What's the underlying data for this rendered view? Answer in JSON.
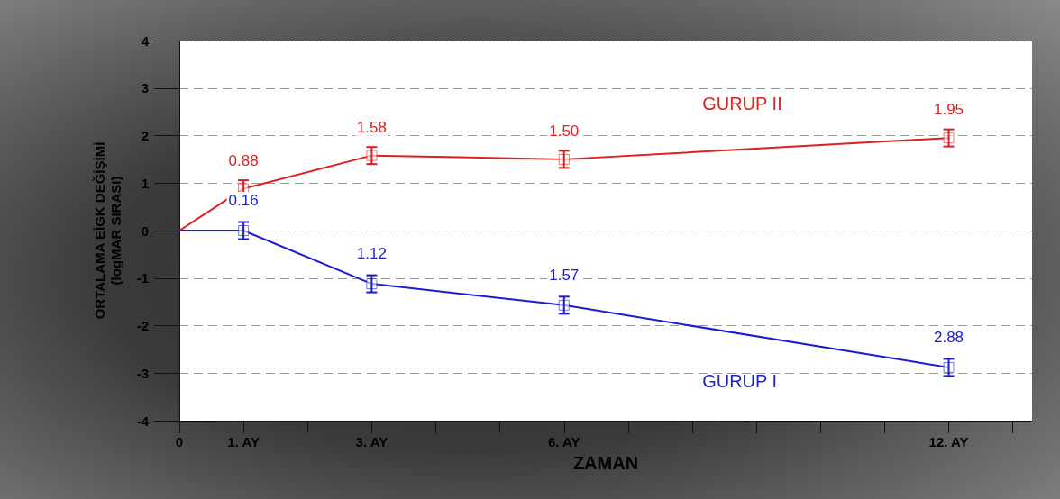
{
  "chart_data": {
    "type": "line",
    "xlabel": "ZAMAN",
    "ylabel": "ORTALAMA EİGK DEĞİŞİMİ\n(logMAR SIRASI)",
    "x": [
      0,
      1,
      3,
      6,
      12
    ],
    "xlim": [
      0,
      13.3
    ],
    "xticks": [
      0,
      {
        "value": 1,
        "label": "1. AY"
      },
      {
        "value": 2,
        "label": null
      },
      {
        "value": 3,
        "label": "3. AY"
      },
      {
        "value": 4,
        "label": null
      },
      {
        "value": 5,
        "label": null
      },
      {
        "value": 6,
        "label": "6. AY"
      },
      {
        "value": 7,
        "label": null
      },
      {
        "value": 8,
        "label": null
      },
      {
        "value": 9,
        "label": null
      },
      {
        "value": 10,
        "label": null
      },
      {
        "value": 11,
        "label": null
      },
      {
        "value": 12,
        "label": "12. AY"
      },
      {
        "value": 13,
        "label": null
      }
    ],
    "ylim": [
      -4,
      4
    ],
    "yticks": [
      -4,
      -3,
      -2,
      -1,
      0,
      1,
      2,
      3,
      4
    ],
    "series": [
      {
        "name": "GURUP II",
        "color": "#e02020",
        "values": [
          0,
          0.88,
          1.58,
          1.5,
          1.95
        ],
        "errors": [
          null,
          0.18,
          0.18,
          0.18,
          0.18
        ],
        "value_labels": [
          null,
          "0.88",
          "1.58",
          "1.50",
          "1.95"
        ]
      },
      {
        "name": "GURUP I",
        "color": "#1c1cd0",
        "values": [
          0,
          0,
          -1.12,
          -1.57,
          -2.88
        ],
        "errors": [
          null,
          0.18,
          0.18,
          0.18,
          0.18
        ]
      }
    ],
    "annotations": [
      {
        "text": "0.16",
        "x": 1,
        "y": 0
      },
      {
        "text": "1.12",
        "x": 3,
        "y": -1.12
      },
      {
        "text": "1.57",
        "x": 6,
        "y": -1.57
      },
      {
        "text": "2.88",
        "x": 12,
        "y": -2.88
      }
    ],
    "marker": "square",
    "line_style": "solid",
    "grid": "y",
    "legend": false
  }
}
